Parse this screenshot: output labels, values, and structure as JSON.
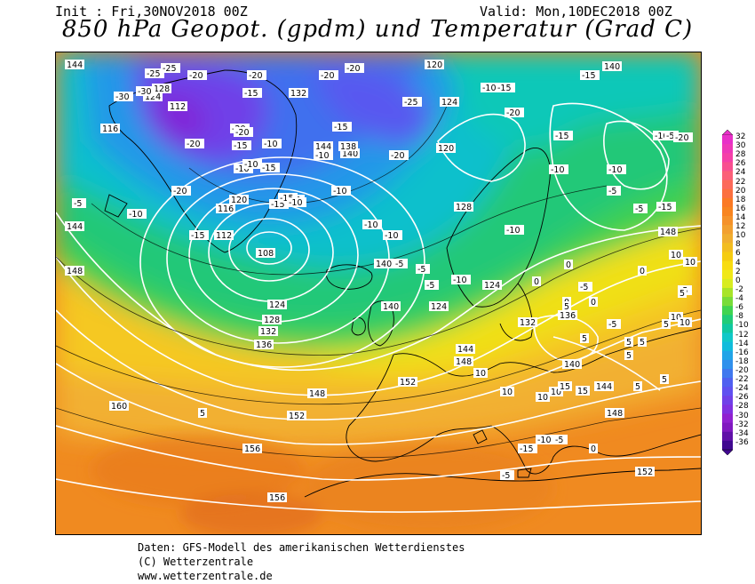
{
  "header": {
    "init": "Init : Fri,30NOV2018 00Z",
    "valid": "Valid: Mon,10DEC2018 00Z",
    "title": "850 hPa Geopot. (gpdm) und Temperatur (Grad C)"
  },
  "footer": {
    "line1": "Daten: GFS-Modell des amerikanischen Wetterdienstes",
    "line2": "(C) Wetterzentrale",
    "line3": "www.wetterzentrale.de"
  },
  "colorbar": {
    "labels": [
      "32",
      "30",
      "28",
      "26",
      "24",
      "22",
      "20",
      "18",
      "16",
      "14",
      "12",
      "10",
      "8",
      "6",
      "4",
      "2",
      "0",
      "-2",
      "-4",
      "-6",
      "-8",
      "-10",
      "-12",
      "-14",
      "-16",
      "-18",
      "-20",
      "-22",
      "-24",
      "-26",
      "-28",
      "-30",
      "-32",
      "-34",
      "-36"
    ],
    "colors": [
      "#e830c8",
      "#ee38b8",
      "#f540a8",
      "#f85090",
      "#fb6078",
      "#fc6a5a",
      "#fc7040",
      "#fb7a25",
      "#f88520",
      "#f5922a",
      "#f2a030",
      "#f0ae30",
      "#f2bd20",
      "#f5cc10",
      "#f8dc10",
      "#f0e818",
      "#d8ec20",
      "#a8e428",
      "#78dc38",
      "#40d450",
      "#20cc78",
      "#10c8a0",
      "#10c8c8",
      "#10bcdc",
      "#20a4e8",
      "#3090ec",
      "#4078ee",
      "#5060f0",
      "#6050f0",
      "#7040e8",
      "#8030e0",
      "#9020d0",
      "#8018c0",
      "#6010a8",
      "#400890"
    ]
  },
  "labels": {
    "geopotential_gpdm": [
      "144",
      "120",
      "140",
      "132",
      "128",
      "124",
      "112",
      "116",
      "116",
      "120",
      "112",
      "108",
      "124",
      "144",
      "140",
      "138",
      "140",
      "124",
      "128",
      "120",
      "124",
      "144",
      "148",
      "124",
      "132",
      "136",
      "128",
      "132",
      "140",
      "136",
      "152",
      "148",
      "144",
      "160",
      "156",
      "152",
      "148",
      "140",
      "144",
      "148",
      "152",
      "156",
      "152",
      "148"
    ],
    "temperature_c": [
      "-25",
      "-30",
      "-25",
      "-30",
      "-20",
      "-20",
      "-15",
      "-20",
      "-20",
      "-20",
      "-15",
      "-10",
      "-15",
      "-10",
      "-10",
      "-20",
      "-15",
      "-15",
      "-20",
      "-20",
      "-20",
      "-25",
      "-20",
      "-15",
      "-10",
      "-10",
      "-10",
      "-10",
      "-10",
      "-15",
      "-20",
      "-15",
      "-10",
      "-15",
      "-10",
      "-5",
      "-10",
      "-5",
      "-15",
      "-20",
      "-5",
      "-5",
      "-10",
      "-15",
      "-10",
      "-5",
      "-5",
      "-5",
      "-10",
      "-10",
      "0",
      "-5",
      "0",
      "0",
      "0",
      "-5",
      "0",
      "-5",
      "5",
      "5",
      "5",
      "5",
      "10",
      "10",
      "10",
      "10",
      "5",
      "5",
      "10",
      "10",
      "10",
      "10",
      "15",
      "15",
      "5",
      "5",
      "5",
      "-5",
      "-15",
      "-10",
      "-5",
      "0",
      "5"
    ]
  }
}
